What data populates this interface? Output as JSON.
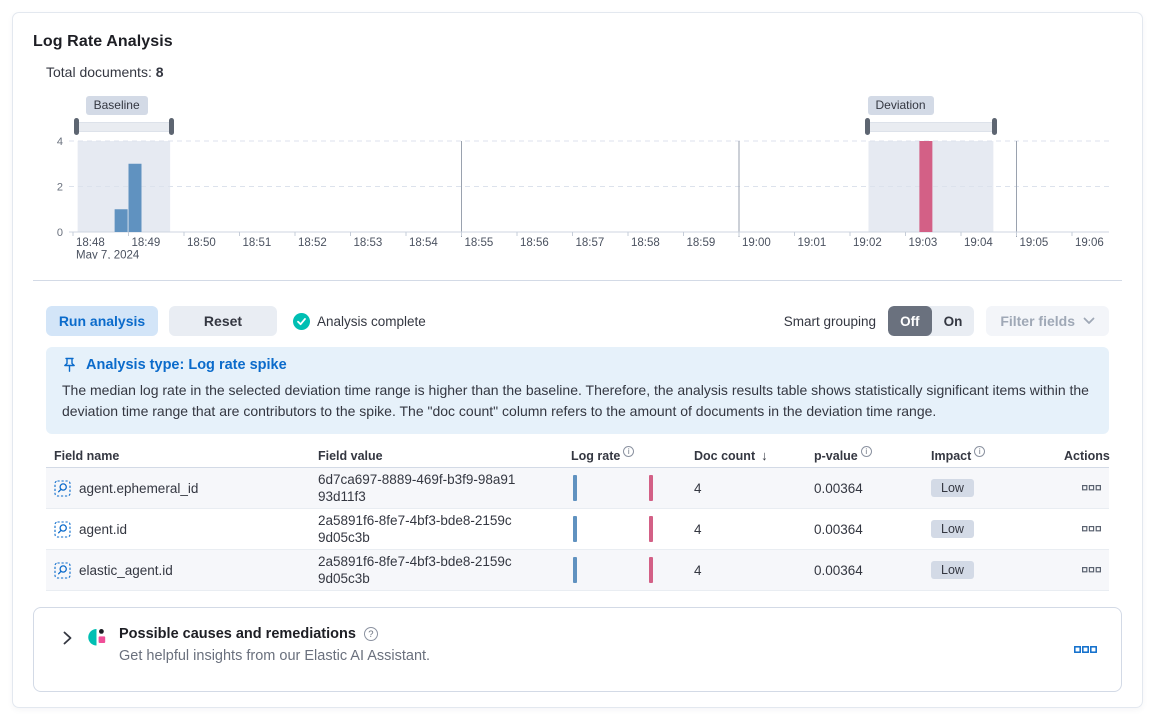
{
  "page": {
    "title": "Log Rate Analysis"
  },
  "summary": {
    "label": "Total documents:",
    "value": "8"
  },
  "chart_data": {
    "type": "bar",
    "title": "Document count histogram with baseline and deviation time range brushes",
    "x_ticks": [
      "18:48",
      "18:49",
      "18:50",
      "18:51",
      "18:52",
      "18:53",
      "18:54",
      "18:55",
      "18:56",
      "18:57",
      "18:58",
      "18:59",
      "19:00",
      "19:01",
      "19:02",
      "19:03",
      "19:04",
      "19:05",
      "19:06"
    ],
    "x_date_label": "May 7, 2024",
    "y_ticks": [
      4,
      2,
      0
    ],
    "ylim": [
      0,
      4
    ],
    "vertical_gridlines": [
      "18:55",
      "19:00",
      "19:05"
    ],
    "baseline": {
      "label": "Baseline",
      "window": [
        "18:48:05",
        "18:49:45"
      ],
      "bars": [
        {
          "time": "18:48:45",
          "value": 1
        },
        {
          "time": "18:49:00",
          "value": 3
        }
      ]
    },
    "deviation": {
      "label": "Deviation",
      "window": [
        "19:02:20",
        "19:04:35"
      ],
      "bars": [
        {
          "time": "19:03:15",
          "value": 4
        }
      ]
    },
    "colors": {
      "baseline_bar": "#6092c0",
      "deviation_bar": "#d36086",
      "window_shade": "#e6eaf2"
    }
  },
  "toolbar": {
    "run_label": "Run analysis",
    "reset_label": "Reset",
    "status": "Analysis complete",
    "smart_grouping_label": "Smart grouping",
    "off_label": "Off",
    "on_label": "On",
    "filter_fields_label": "Filter fields",
    "status_color": "#00bfb3"
  },
  "callout": {
    "title": "Analysis type: Log rate spike",
    "body": "The median log rate in the selected deviation time range is higher than the baseline. Therefore, the analysis results table shows statistically significant items within the deviation time range that are contributors to the spike. The \"doc count\" column refers to the amount of documents in the deviation time range."
  },
  "table": {
    "col_field_name": "Field name",
    "col_field_value": "Field value",
    "col_log_rate": "Log rate",
    "col_doc_count": "Doc count",
    "col_p_value": "p-value",
    "col_impact": "Impact",
    "col_actions": "Actions",
    "sorted_by": "Doc count",
    "sort_direction": "descending",
    "sort_icon": "↓",
    "rows": [
      {
        "field_name": "agent.ephemeral_id",
        "field_value": "6d7ca697-8889-469f-b3f9-98a9193d11f3",
        "doc_count": "4",
        "p_value": "0.00364",
        "impact": "Low"
      },
      {
        "field_name": "agent.id",
        "field_value": "2a5891f6-8fe7-4bf3-bde8-2159c9d05c3b",
        "doc_count": "4",
        "p_value": "0.00364",
        "impact": "Low"
      },
      {
        "field_name": "elastic_agent.id",
        "field_value": "2a5891f6-8fe7-4bf3-bde8-2159c9d05c3b",
        "doc_count": "4",
        "p_value": "0.00364",
        "impact": "Low"
      }
    ]
  },
  "footer": {
    "title": "Possible causes and remediations",
    "subtitle": "Get helpful insights from our Elastic AI Assistant."
  }
}
